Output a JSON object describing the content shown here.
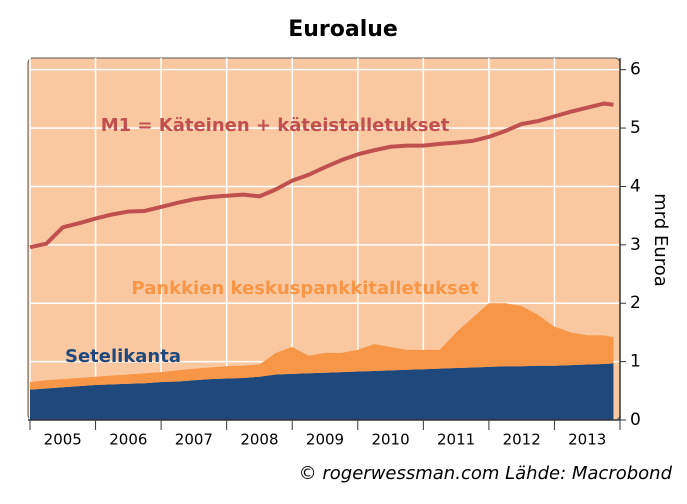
{
  "chart_data": {
    "type": "stacked-area-line",
    "title": "Euroalue",
    "y_label": "mrd Euroa",
    "footer": "© rogerwessman.com Lähde: Macrobond",
    "x": [
      2005,
      2005.25,
      2005.5,
      2005.75,
      2006,
      2006.25,
      2006.5,
      2006.75,
      2007,
      2007.25,
      2007.5,
      2007.75,
      2008,
      2008.25,
      2008.5,
      2008.75,
      2009,
      2009.25,
      2009.5,
      2009.75,
      2010,
      2010.25,
      2010.5,
      2010.75,
      2011,
      2011.25,
      2011.5,
      2011.75,
      2012,
      2012.25,
      2012.5,
      2012.75,
      2013,
      2013.25,
      2013.5,
      2013.75,
      2013.9
    ],
    "series": [
      {
        "name": "Setelikanta",
        "kind": "area",
        "color": "#1f497d",
        "values": [
          0.52,
          0.54,
          0.56,
          0.58,
          0.6,
          0.61,
          0.62,
          0.63,
          0.65,
          0.66,
          0.68,
          0.7,
          0.71,
          0.72,
          0.74,
          0.78,
          0.79,
          0.8,
          0.81,
          0.82,
          0.83,
          0.84,
          0.85,
          0.86,
          0.87,
          0.88,
          0.89,
          0.9,
          0.91,
          0.92,
          0.92,
          0.93,
          0.93,
          0.94,
          0.95,
          0.96,
          0.97
        ]
      },
      {
        "name": "Pankkien keskuspankkitalletukset",
        "kind": "area",
        "color": "#f79646",
        "values": [
          0.13,
          0.14,
          0.14,
          0.14,
          0.14,
          0.15,
          0.16,
          0.17,
          0.17,
          0.19,
          0.2,
          0.2,
          0.21,
          0.21,
          0.21,
          0.37,
          0.46,
          0.3,
          0.34,
          0.33,
          0.37,
          0.46,
          0.4,
          0.34,
          0.33,
          0.32,
          0.61,
          0.85,
          1.09,
          1.08,
          1.03,
          0.87,
          0.67,
          0.56,
          0.5,
          0.49,
          0.45
        ]
      },
      {
        "name": "M1 = Käteinen + käteistalletukset",
        "kind": "line",
        "color": "#c0504d",
        "values": [
          2.96,
          3.02,
          3.3,
          3.37,
          3.45,
          3.52,
          3.57,
          3.58,
          3.65,
          3.72,
          3.78,
          3.82,
          3.84,
          3.86,
          3.83,
          3.95,
          4.1,
          4.2,
          4.33,
          4.45,
          4.55,
          4.62,
          4.68,
          4.7,
          4.7,
          4.73,
          4.75,
          4.78,
          4.85,
          4.95,
          5.07,
          5.12,
          5.2,
          5.28,
          5.35,
          5.42,
          5.4
        ]
      }
    ],
    "xlim": [
      2005,
      2014
    ],
    "xticks": [
      2005,
      2006,
      2007,
      2008,
      2009,
      2010,
      2011,
      2012,
      2013
    ],
    "ylim": [
      0,
      6.2
    ],
    "yticks": [
      0,
      1,
      2,
      3,
      4,
      5,
      6
    ],
    "grid": true,
    "plot_background": "#fac8a0"
  }
}
